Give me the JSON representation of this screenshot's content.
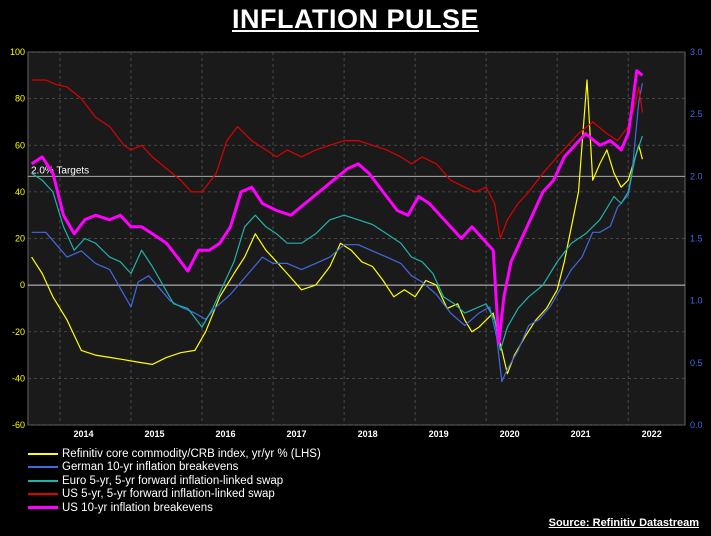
{
  "title": "INFLATION PULSE",
  "source": "Source: Refinitiv Datastream",
  "target_label": "2.0% Targets",
  "chart_data": {
    "type": "line",
    "x_ticks": [
      "2014",
      "2015",
      "2016",
      "2017",
      "2018",
      "2019",
      "2020",
      "2021",
      "2022"
    ],
    "y_left": {
      "min": -60,
      "max": 100,
      "ticks": [
        100,
        80,
        60,
        40,
        20,
        0,
        -20,
        -40,
        -60
      ]
    },
    "y_right": {
      "min": 0.0,
      "max": 3.0,
      "ticks": [
        "3.0",
        "2.5",
        "2.0",
        "1.5",
        "1.0",
        "0.5",
        "0.0"
      ]
    },
    "colors": {
      "left_axis": "#ffff00",
      "right_axis": "#4169e1",
      "grid": "#555555"
    },
    "series": [
      {
        "name": "Refinitiv core commodity/CRB index, yr/yr % (LHS)",
        "color": "#ffff00",
        "axis": "left",
        "points": [
          [
            2013.6,
            12
          ],
          [
            2013.75,
            5
          ],
          [
            2013.9,
            -5
          ],
          [
            2014.1,
            -15
          ],
          [
            2014.3,
            -28
          ],
          [
            2014.5,
            -30
          ],
          [
            2014.7,
            -31
          ],
          [
            2014.9,
            -32
          ],
          [
            2015.1,
            -33
          ],
          [
            2015.3,
            -34
          ],
          [
            2015.5,
            -31
          ],
          [
            2015.7,
            -29
          ],
          [
            2015.9,
            -28
          ],
          [
            2016.05,
            -20
          ],
          [
            2016.25,
            -5
          ],
          [
            2016.45,
            5
          ],
          [
            2016.6,
            12
          ],
          [
            2016.75,
            22
          ],
          [
            2016.9,
            15
          ],
          [
            2017.05,
            10
          ],
          [
            2017.2,
            5
          ],
          [
            2017.4,
            -2
          ],
          [
            2017.6,
            0
          ],
          [
            2017.8,
            8
          ],
          [
            2017.95,
            18
          ],
          [
            2018.1,
            15
          ],
          [
            2018.25,
            10
          ],
          [
            2018.4,
            8
          ],
          [
            2018.55,
            2
          ],
          [
            2018.7,
            -5
          ],
          [
            2018.85,
            -2
          ],
          [
            2019.0,
            -5
          ],
          [
            2019.15,
            2
          ],
          [
            2019.3,
            0
          ],
          [
            2019.45,
            -10
          ],
          [
            2019.6,
            -8
          ],
          [
            2019.7,
            -15
          ],
          [
            2019.8,
            -20
          ],
          [
            2019.9,
            -18
          ],
          [
            2020.0,
            -15
          ],
          [
            2020.1,
            -12
          ],
          [
            2020.2,
            -25
          ],
          [
            2020.3,
            -38
          ],
          [
            2020.4,
            -30
          ],
          [
            2020.55,
            -22
          ],
          [
            2020.7,
            -15
          ],
          [
            2020.85,
            -10
          ],
          [
            2021.0,
            -2
          ],
          [
            2021.1,
            10
          ],
          [
            2021.2,
            25
          ],
          [
            2021.3,
            40
          ],
          [
            2021.35,
            60
          ],
          [
            2021.42,
            88
          ],
          [
            2021.5,
            45
          ],
          [
            2021.6,
            52
          ],
          [
            2021.7,
            58
          ],
          [
            2021.8,
            48
          ],
          [
            2021.9,
            42
          ],
          [
            2022.0,
            45
          ],
          [
            2022.1,
            55
          ],
          [
            2022.15,
            60
          ],
          [
            2022.2,
            54
          ]
        ]
      },
      {
        "name": "German 10-yr inflation breakevens",
        "color": "#4169e1",
        "axis": "right",
        "points": [
          [
            2013.6,
            1.55
          ],
          [
            2013.8,
            1.55
          ],
          [
            2013.95,
            1.45
          ],
          [
            2014.1,
            1.35
          ],
          [
            2014.3,
            1.4
          ],
          [
            2014.5,
            1.3
          ],
          [
            2014.7,
            1.25
          ],
          [
            2014.85,
            1.1
          ],
          [
            2015.0,
            0.95
          ],
          [
            2015.1,
            1.15
          ],
          [
            2015.25,
            1.2
          ],
          [
            2015.4,
            1.1
          ],
          [
            2015.55,
            1.0
          ],
          [
            2015.7,
            0.95
          ],
          [
            2015.9,
            0.9
          ],
          [
            2016.05,
            0.85
          ],
          [
            2016.2,
            0.95
          ],
          [
            2016.4,
            1.05
          ],
          [
            2016.55,
            1.15
          ],
          [
            2016.7,
            1.25
          ],
          [
            2016.85,
            1.35
          ],
          [
            2017.0,
            1.3
          ],
          [
            2017.2,
            1.3
          ],
          [
            2017.4,
            1.25
          ],
          [
            2017.6,
            1.3
          ],
          [
            2017.8,
            1.35
          ],
          [
            2018.0,
            1.45
          ],
          [
            2018.2,
            1.45
          ],
          [
            2018.4,
            1.4
          ],
          [
            2018.6,
            1.35
          ],
          [
            2018.8,
            1.3
          ],
          [
            2018.95,
            1.2
          ],
          [
            2019.1,
            1.15
          ],
          [
            2019.3,
            1.05
          ],
          [
            2019.5,
            0.9
          ],
          [
            2019.7,
            0.8
          ],
          [
            2019.8,
            0.85
          ],
          [
            2019.9,
            0.9
          ],
          [
            2020.05,
            0.95
          ],
          [
            2020.15,
            0.7
          ],
          [
            2020.22,
            0.35
          ],
          [
            2020.3,
            0.45
          ],
          [
            2020.45,
            0.6
          ],
          [
            2020.6,
            0.8
          ],
          [
            2020.75,
            0.85
          ],
          [
            2020.9,
            0.95
          ],
          [
            2021.05,
            1.1
          ],
          [
            2021.2,
            1.25
          ],
          [
            2021.35,
            1.35
          ],
          [
            2021.5,
            1.55
          ],
          [
            2021.6,
            1.55
          ],
          [
            2021.75,
            1.6
          ],
          [
            2021.85,
            1.75
          ],
          [
            2022.0,
            1.85
          ],
          [
            2022.05,
            2.0
          ],
          [
            2022.15,
            2.6
          ],
          [
            2022.2,
            2.75
          ]
        ]
      },
      {
        "name": "Euro 5-yr, 5-yr forward inflation-linked swap",
        "color": "#20b2aa",
        "axis": "left",
        "points": [
          [
            2013.6,
            48
          ],
          [
            2013.75,
            45
          ],
          [
            2013.9,
            40
          ],
          [
            2014.05,
            25
          ],
          [
            2014.2,
            15
          ],
          [
            2014.35,
            20
          ],
          [
            2014.5,
            18
          ],
          [
            2014.7,
            12
          ],
          [
            2014.85,
            10
          ],
          [
            2015.0,
            5
          ],
          [
            2015.15,
            15
          ],
          [
            2015.3,
            8
          ],
          [
            2015.45,
            0
          ],
          [
            2015.6,
            -8
          ],
          [
            2015.8,
            -10
          ],
          [
            2016.0,
            -18
          ],
          [
            2016.15,
            -10
          ],
          [
            2016.3,
            0
          ],
          [
            2016.45,
            10
          ],
          [
            2016.6,
            25
          ],
          [
            2016.75,
            30
          ],
          [
            2016.9,
            25
          ],
          [
            2017.05,
            22
          ],
          [
            2017.2,
            18
          ],
          [
            2017.4,
            18
          ],
          [
            2017.6,
            22
          ],
          [
            2017.8,
            28
          ],
          [
            2018.0,
            30
          ],
          [
            2018.2,
            28
          ],
          [
            2018.4,
            26
          ],
          [
            2018.6,
            22
          ],
          [
            2018.8,
            18
          ],
          [
            2018.95,
            12
          ],
          [
            2019.1,
            10
          ],
          [
            2019.25,
            5
          ],
          [
            2019.4,
            -5
          ],
          [
            2019.55,
            -8
          ],
          [
            2019.7,
            -12
          ],
          [
            2019.85,
            -10
          ],
          [
            2020.0,
            -8
          ],
          [
            2020.12,
            -15
          ],
          [
            2020.2,
            -28
          ],
          [
            2020.3,
            -18
          ],
          [
            2020.45,
            -10
          ],
          [
            2020.6,
            -5
          ],
          [
            2020.8,
            0
          ],
          [
            2021.0,
            10
          ],
          [
            2021.2,
            18
          ],
          [
            2021.4,
            22
          ],
          [
            2021.6,
            28
          ],
          [
            2021.8,
            38
          ],
          [
            2021.9,
            35
          ],
          [
            2022.0,
            40
          ],
          [
            2022.1,
            55
          ],
          [
            2022.2,
            64
          ]
        ]
      },
      {
        "name": "US 5-yr, 5-yr forward inflation-linked swap",
        "color": "#dd0000",
        "axis": "left",
        "points": [
          [
            2013.6,
            88
          ],
          [
            2013.8,
            88
          ],
          [
            2013.95,
            86
          ],
          [
            2014.1,
            85
          ],
          [
            2014.3,
            80
          ],
          [
            2014.5,
            72
          ],
          [
            2014.7,
            68
          ],
          [
            2014.9,
            60
          ],
          [
            2015.0,
            58
          ],
          [
            2015.15,
            60
          ],
          [
            2015.3,
            55
          ],
          [
            2015.5,
            50
          ],
          [
            2015.7,
            45
          ],
          [
            2015.85,
            40
          ],
          [
            2016.0,
            40
          ],
          [
            2016.2,
            48
          ],
          [
            2016.35,
            62
          ],
          [
            2016.5,
            68
          ],
          [
            2016.7,
            62
          ],
          [
            2016.9,
            58
          ],
          [
            2017.05,
            55
          ],
          [
            2017.2,
            58
          ],
          [
            2017.4,
            55
          ],
          [
            2017.6,
            58
          ],
          [
            2017.8,
            60
          ],
          [
            2018.0,
            62
          ],
          [
            2018.2,
            62
          ],
          [
            2018.4,
            60
          ],
          [
            2018.6,
            58
          ],
          [
            2018.8,
            55
          ],
          [
            2018.95,
            52
          ],
          [
            2019.1,
            55
          ],
          [
            2019.3,
            52
          ],
          [
            2019.5,
            45
          ],
          [
            2019.7,
            42
          ],
          [
            2019.85,
            40
          ],
          [
            2020.0,
            42
          ],
          [
            2020.12,
            35
          ],
          [
            2020.2,
            20
          ],
          [
            2020.3,
            28
          ],
          [
            2020.45,
            35
          ],
          [
            2020.6,
            40
          ],
          [
            2020.8,
            48
          ],
          [
            2021.0,
            55
          ],
          [
            2021.15,
            60
          ],
          [
            2021.3,
            65
          ],
          [
            2021.5,
            70
          ],
          [
            2021.7,
            65
          ],
          [
            2021.85,
            62
          ],
          [
            2022.0,
            68
          ],
          [
            2022.1,
            78
          ],
          [
            2022.15,
            85
          ],
          [
            2022.2,
            74
          ]
        ]
      },
      {
        "name": "US 10-yr inflation breakevens",
        "color": "#ff00ff",
        "axis": "left",
        "points": [
          [
            2013.6,
            52
          ],
          [
            2013.75,
            55
          ],
          [
            2013.9,
            48
          ],
          [
            2014.05,
            30
          ],
          [
            2014.2,
            22
          ],
          [
            2014.35,
            28
          ],
          [
            2014.5,
            30
          ],
          [
            2014.7,
            28
          ],
          [
            2014.85,
            30
          ],
          [
            2015.0,
            25
          ],
          [
            2015.15,
            25
          ],
          [
            2015.3,
            22
          ],
          [
            2015.5,
            18
          ],
          [
            2015.65,
            12
          ],
          [
            2015.8,
            6
          ],
          [
            2015.95,
            15
          ],
          [
            2016.1,
            15
          ],
          [
            2016.25,
            18
          ],
          [
            2016.4,
            25
          ],
          [
            2016.55,
            40
          ],
          [
            2016.7,
            42
          ],
          [
            2016.85,
            35
          ],
          [
            2017.05,
            32
          ],
          [
            2017.25,
            30
          ],
          [
            2017.45,
            35
          ],
          [
            2017.65,
            40
          ],
          [
            2017.85,
            45
          ],
          [
            2018.05,
            50
          ],
          [
            2018.2,
            52
          ],
          [
            2018.35,
            48
          ],
          [
            2018.55,
            40
          ],
          [
            2018.75,
            32
          ],
          [
            2018.9,
            30
          ],
          [
            2019.05,
            38
          ],
          [
            2019.2,
            35
          ],
          [
            2019.35,
            30
          ],
          [
            2019.5,
            25
          ],
          [
            2019.65,
            20
          ],
          [
            2019.8,
            25
          ],
          [
            2019.95,
            20
          ],
          [
            2020.1,
            15
          ],
          [
            2020.18,
            -25
          ],
          [
            2020.25,
            -5
          ],
          [
            2020.35,
            10
          ],
          [
            2020.5,
            20
          ],
          [
            2020.65,
            30
          ],
          [
            2020.8,
            40
          ],
          [
            2020.95,
            45
          ],
          [
            2021.1,
            55
          ],
          [
            2021.25,
            60
          ],
          [
            2021.4,
            65
          ],
          [
            2021.6,
            60
          ],
          [
            2021.75,
            62
          ],
          [
            2021.9,
            58
          ],
          [
            2022.0,
            65
          ],
          [
            2022.05,
            75
          ],
          [
            2022.12,
            92
          ],
          [
            2022.2,
            90
          ]
        ]
      }
    ]
  }
}
